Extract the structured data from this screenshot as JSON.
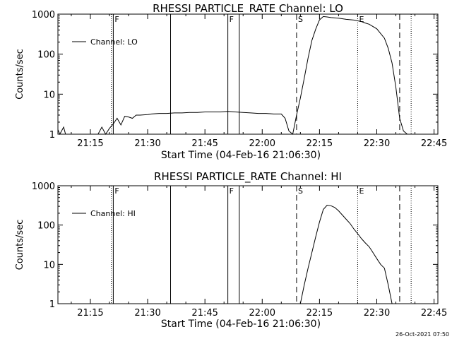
{
  "footer": {
    "date": "26-Oct-2021 07:50"
  },
  "chart_data": [
    {
      "type": "line",
      "title": "RHESSI PARTICLE_RATE Channel: LO",
      "xlabel": "Start Time (04-Feb-16 21:06:30)",
      "ylabel": "Counts/sec",
      "xlim": [
        "21:06:30",
        "22:46:00"
      ],
      "ylim": [
        1,
        1000
      ],
      "yscale": "log",
      "xticks": [
        "21:15",
        "21:30",
        "21:45",
        "22:00",
        "22:15",
        "22:30",
        "22:45"
      ],
      "yticks": [
        "1",
        "10",
        "100",
        "1000"
      ],
      "legend": {
        "label": "Channel: LO",
        "placement": "top-left"
      },
      "markers": [
        {
          "time": "21:20:30",
          "style": "dotted",
          "label": ""
        },
        {
          "time": "21:21:00",
          "style": "solid",
          "label": "F"
        },
        {
          "time": "21:36:00",
          "style": "solid",
          "label": ""
        },
        {
          "time": "21:51:00",
          "style": "solid",
          "label": "F"
        },
        {
          "time": "21:54:00",
          "style": "solid",
          "label": ""
        },
        {
          "time": "22:09:00",
          "style": "dashed",
          "label": "S"
        },
        {
          "time": "22:25:00",
          "style": "dotted",
          "label": "E"
        },
        {
          "time": "22:36:00",
          "style": "dashed",
          "label": ""
        },
        {
          "time": "22:39:00",
          "style": "dotted",
          "label": ""
        }
      ],
      "series": [
        {
          "x": [
            "21:06:30",
            "21:07:00",
            "21:08:00",
            "21:08:30",
            "21:09:00",
            "21:10:00",
            "21:16:00",
            "21:17:00",
            "21:18:00",
            "21:19:00",
            "21:20:00",
            "21:21:00",
            "21:22:00",
            "21:23:00",
            "21:24:00",
            "21:25:00",
            "21:26:00",
            "21:27:00",
            "21:28:00",
            "21:30:00",
            "21:31:00",
            "21:33:00",
            "21:35:00",
            "21:37:00",
            "21:39:00",
            "21:41:00",
            "21:43:00",
            "21:45:00",
            "21:47:00",
            "21:49:00",
            "21:51:00",
            "21:53:00",
            "21:55:00",
            "21:57:00",
            "21:59:00",
            "22:01:00",
            "22:03:00",
            "22:05:00",
            "22:06:00",
            "22:07:00",
            "22:08:00",
            "22:09:00",
            "22:10:00",
            "22:11:00",
            "22:12:00",
            "22:13:00",
            "22:14:00",
            "22:15:00",
            "22:16:00",
            "22:17:00",
            "22:18:00",
            "22:20:00",
            "22:22:00",
            "22:24:00",
            "22:26:00",
            "22:27:00",
            "22:28:00",
            "22:30:00",
            "22:32:00",
            "22:33:00",
            "22:34:00",
            "22:35:00",
            "22:36:00",
            "22:37:00",
            "22:38:00",
            "22:39:00"
          ],
          "y": [
            1.3,
            1,
            1.5,
            1,
            1,
            1,
            1,
            1,
            1.5,
            1,
            1.4,
            1.8,
            2.5,
            1.7,
            2.8,
            2.7,
            2.5,
            3,
            3,
            3.1,
            3.2,
            3.3,
            3.3,
            3.4,
            3.4,
            3.5,
            3.5,
            3.6,
            3.6,
            3.6,
            3.7,
            3.6,
            3.5,
            3.4,
            3.3,
            3.3,
            3.2,
            3.2,
            2.5,
            1.2,
            1,
            3,
            8,
            25,
            80,
            220,
            420,
            720,
            870,
            850,
            820,
            790,
            740,
            710,
            650,
            600,
            560,
            430,
            250,
            140,
            60,
            15,
            2.5,
            1.2,
            1,
            1
          ]
        }
      ]
    },
    {
      "type": "line",
      "title": "RHESSI PARTICLE_RATE Channel: HI",
      "xlabel": "Start Time (04-Feb-16 21:06:30)",
      "ylabel": "Counts/sec",
      "xlim": [
        "21:06:30",
        "22:46:00"
      ],
      "ylim": [
        1,
        1000
      ],
      "yscale": "log",
      "xticks": [
        "21:15",
        "21:30",
        "21:45",
        "22:00",
        "22:15",
        "22:30",
        "22:45"
      ],
      "yticks": [
        "1",
        "10",
        "100",
        "1000"
      ],
      "legend": {
        "label": "Channel: HI",
        "placement": "top-left"
      },
      "markers": [
        {
          "time": "21:20:30",
          "style": "dotted",
          "label": ""
        },
        {
          "time": "21:21:00",
          "style": "solid",
          "label": "F"
        },
        {
          "time": "21:36:00",
          "style": "solid",
          "label": ""
        },
        {
          "time": "21:51:00",
          "style": "solid",
          "label": "F"
        },
        {
          "time": "21:54:00",
          "style": "solid",
          "label": ""
        },
        {
          "time": "22:09:00",
          "style": "dashed",
          "label": "S"
        },
        {
          "time": "22:25:00",
          "style": "dotted",
          "label": "E"
        },
        {
          "time": "22:36:00",
          "style": "dashed",
          "label": ""
        },
        {
          "time": "22:39:00",
          "style": "dotted",
          "label": ""
        }
      ],
      "series": [
        {
          "x": [
            "22:10:00",
            "22:11:00",
            "22:12:00",
            "22:13:00",
            "22:14:00",
            "22:15:00",
            "22:16:00",
            "22:17:00",
            "22:18:00",
            "22:19:00",
            "22:20:00",
            "22:21:00",
            "22:22:00",
            "22:23:00",
            "22:24:00",
            "22:25:00",
            "22:26:00",
            "22:27:00",
            "22:28:00",
            "22:29:00",
            "22:30:00",
            "22:31:00",
            "22:32:00",
            "22:33:00",
            "22:34:00"
          ],
          "y": [
            1,
            3,
            8,
            20,
            50,
            120,
            250,
            320,
            310,
            280,
            230,
            180,
            140,
            110,
            80,
            60,
            45,
            35,
            28,
            20,
            14,
            10,
            8,
            3,
            1
          ]
        }
      ]
    }
  ]
}
